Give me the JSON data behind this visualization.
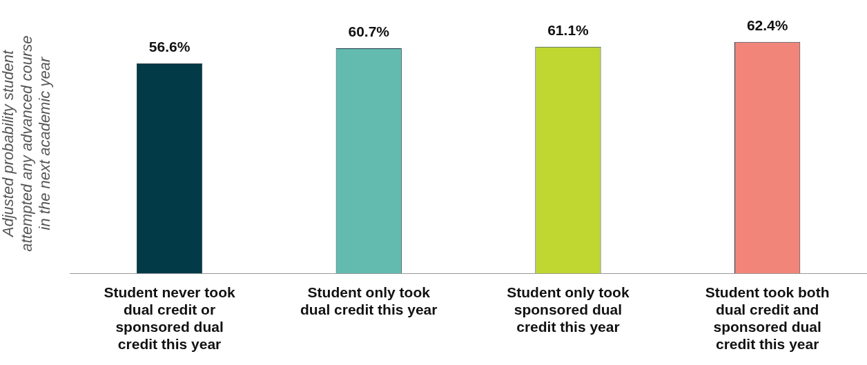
{
  "chart_data": {
    "type": "bar",
    "ylabel": "Adjusted probability student attempted any advanced course in the next academic year",
    "categories": [
      "Student never took dual credit or sponsored dual credit this year",
      "Student only took dual credit this year",
      "Student only took sponsored dual credit this year",
      "Student took both dual credit and sponsored dual credit this year"
    ],
    "values": [
      56.6,
      60.7,
      61.1,
      62.4
    ],
    "value_labels": [
      "56.6%",
      "60.7%",
      "61.1%",
      "62.4%"
    ],
    "colors": [
      "#023a47",
      "#63bbb0",
      "#c0d631",
      "#f28579"
    ],
    "grid": false,
    "legend": false,
    "tick_labels": "x"
  }
}
